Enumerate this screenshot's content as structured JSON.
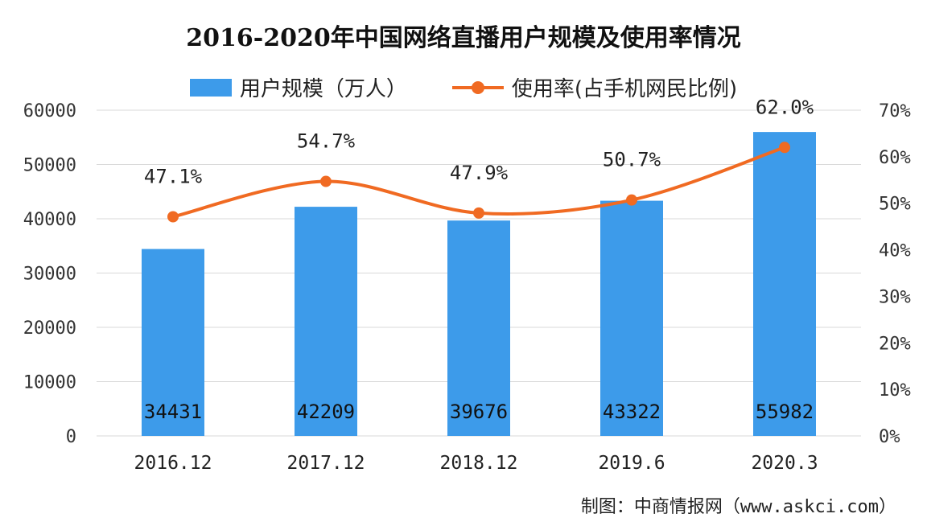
{
  "chart_data": {
    "type": "bar",
    "title": "2016-2020年中国网络直播用户规模及使用率情况",
    "categories": [
      "2016.12",
      "2017.12",
      "2018.12",
      "2019.6",
      "2020.3"
    ],
    "series": [
      {
        "name": "用户规模（万人）",
        "type": "bar",
        "axis": "left",
        "values": [
          34431,
          42209,
          39676,
          43322,
          55982
        ],
        "labels": [
          "34431",
          "42209",
          "39676",
          "43322",
          "55982"
        ],
        "color": "#3d9bea"
      },
      {
        "name": "使用率(占手机网民比例)",
        "type": "line",
        "axis": "right",
        "values": [
          47.1,
          54.7,
          47.9,
          50.7,
          62.0
        ],
        "labels": [
          "47.1%",
          "54.7%",
          "47.9%",
          "50.7%",
          "62.0%"
        ],
        "color": "#f06a22"
      }
    ],
    "y_left": {
      "min": 0,
      "max": 60000,
      "ticks": [
        "0",
        "10000",
        "20000",
        "30000",
        "40000",
        "50000",
        "60000"
      ]
    },
    "y_right": {
      "min": 0,
      "max": 70,
      "ticks": [
        "0%",
        "10%",
        "20%",
        "30%",
        "40%",
        "50%",
        "60%",
        "70%"
      ]
    },
    "grid": true,
    "legend_position": "top-center",
    "source": "制图：中商情报网（www.askci.com）"
  }
}
